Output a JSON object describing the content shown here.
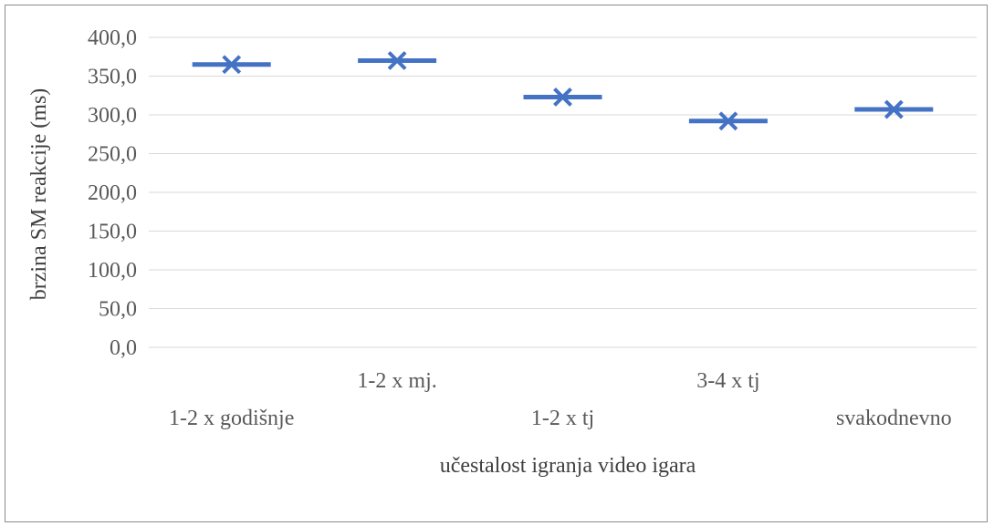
{
  "chart_data": {
    "type": "scatter",
    "categories": [
      "1-2 x godišnje",
      "1-2 x mj.",
      "1-2 x tj",
      "3-4 x tj",
      "svakodnevno"
    ],
    "values": [
      365,
      370,
      323,
      292,
      307
    ],
    "ylabel": "brzina SM reakcije (ms)",
    "xlabel": "učestalost igranja video igara",
    "ylim": [
      0,
      400
    ],
    "yticks": [
      "0,0",
      "50,0",
      "100,0",
      "150,0",
      "200,0",
      "250,0",
      "300,0",
      "350,0",
      "400,0"
    ],
    "grid": true,
    "colors": {
      "marker": "#4472c4",
      "grid": "#d9d9d9"
    }
  }
}
